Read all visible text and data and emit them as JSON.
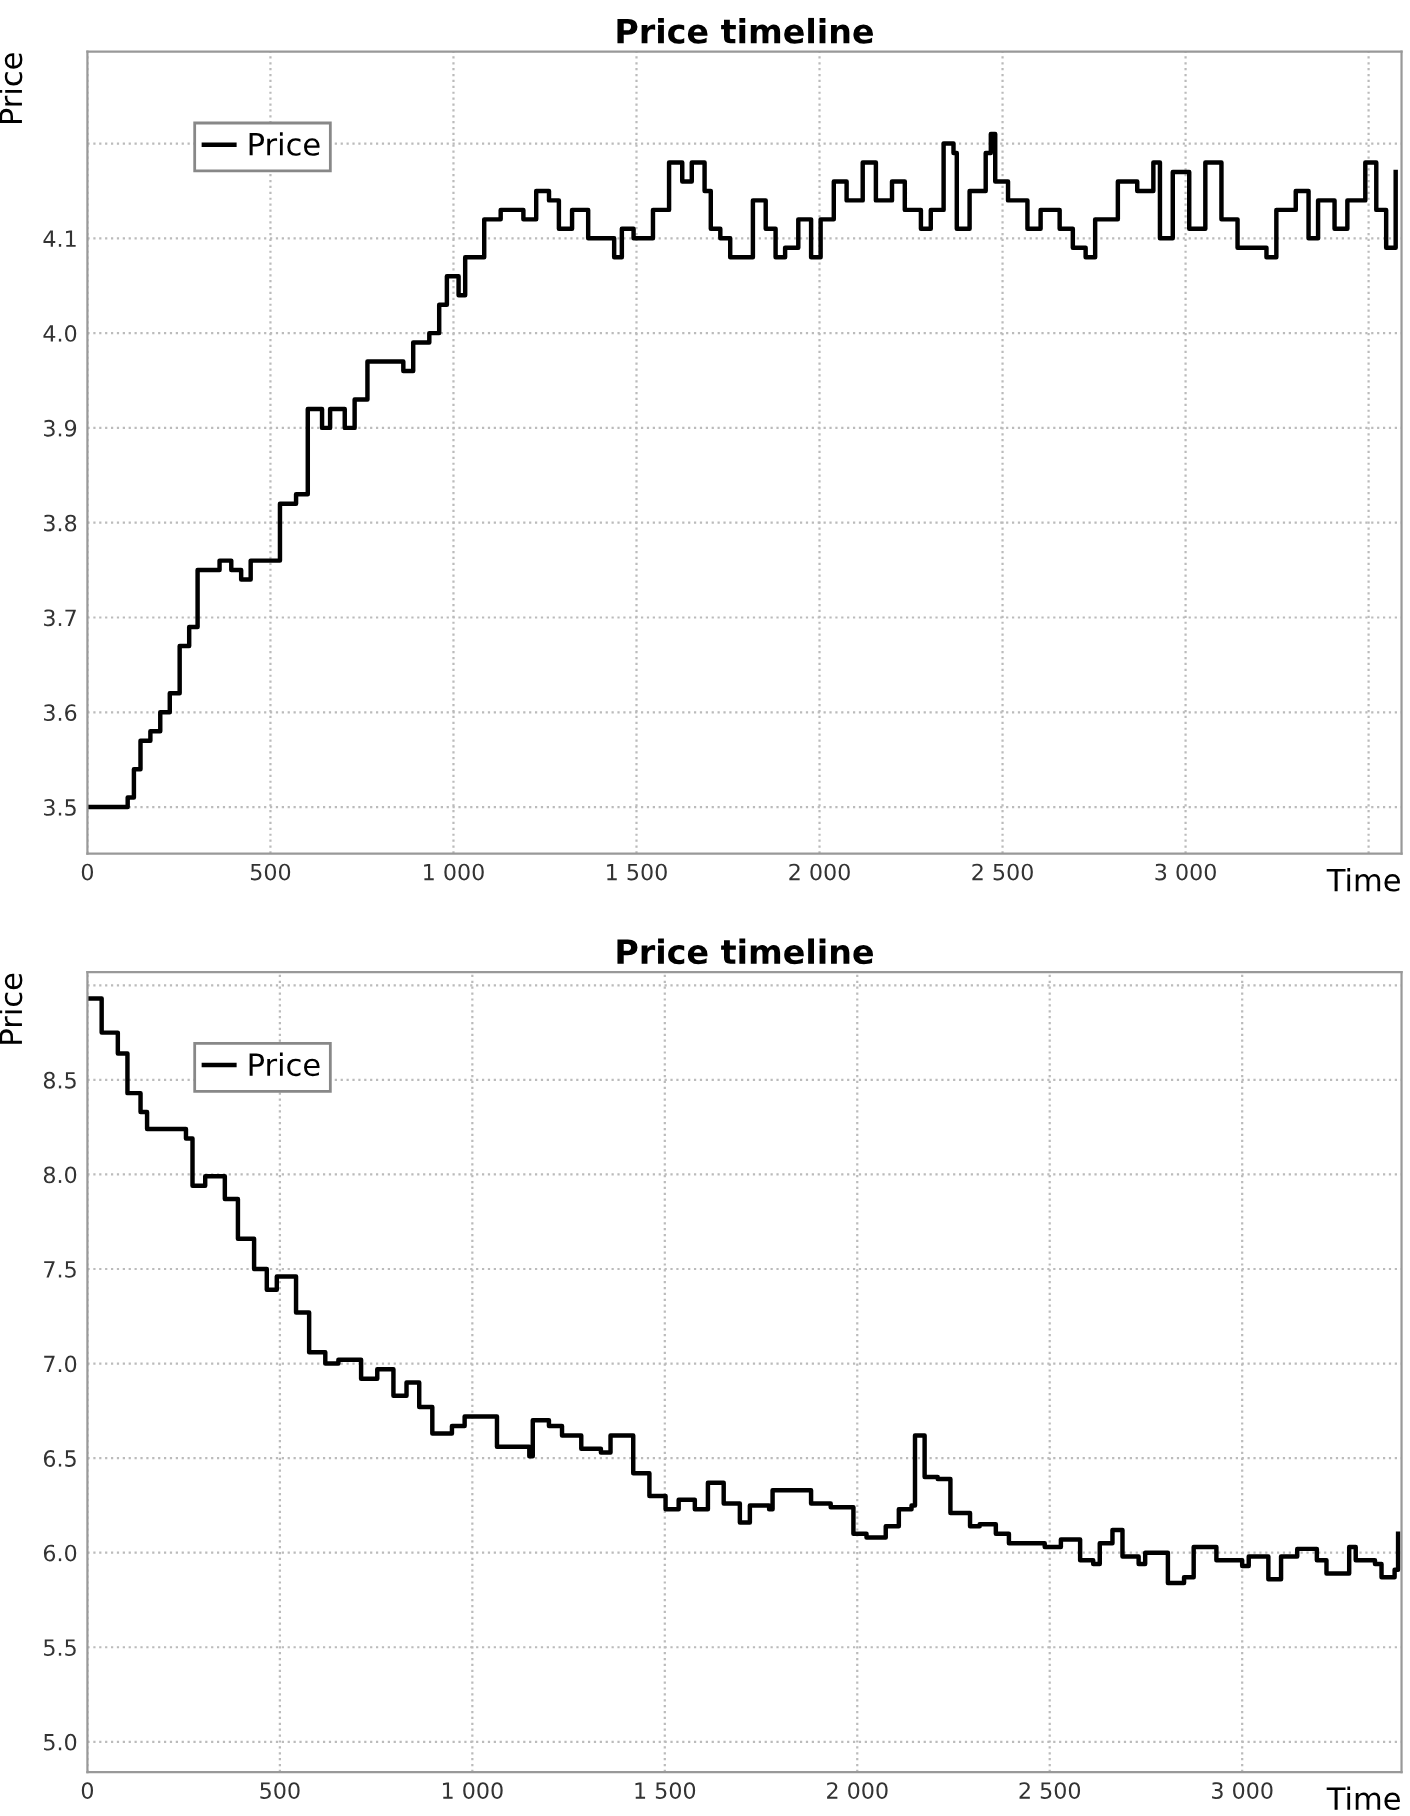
{
  "chart_data": [
    {
      "type": "step",
      "title": "Price timeline",
      "xlabel": "Time",
      "ylabel": "Price",
      "grid": true,
      "legend": "top left",
      "marker": "none",
      "line_style": "solid",
      "xlim": [
        0,
        3590
      ],
      "ylim": [
        3.451,
        4.297
      ],
      "xticks": [
        0,
        500,
        {
          "value": 1000,
          "label": "1 000"
        },
        {
          "value": 1500,
          "label": "1 500"
        },
        {
          "value": 2000,
          "label": "2 000"
        },
        {
          "value": 2500,
          "label": "2 500"
        },
        {
          "value": 3000,
          "label": "3 000"
        },
        {
          "value": 3500,
          "label": null
        }
      ],
      "yticks": [
        3.5,
        3.6,
        3.7,
        3.8,
        3.9,
        {
          "value": 4.0,
          "label": "4.0"
        },
        4.1,
        {
          "value": 4.2,
          "label": null
        }
      ],
      "series": [
        {
          "name": "Price",
          "color": "#000000",
          "x": [
            0,
            83,
            110,
            127,
            145,
            172,
            199,
            225,
            252,
            278,
            301,
            349,
            361,
            393,
            420,
            446,
            482,
            508,
            526,
            570,
            597,
            602,
            641,
            663,
            703,
            730,
            765,
            827,
            863,
            890,
            934,
            961,
            982,
            1014,
            1032,
            1084,
            1129,
            1191,
            1226,
            1261,
            1288,
            1324,
            1368,
            1439,
            1460,
            1492,
            1545,
            1589,
            1625,
            1651,
            1686,
            1703,
            1729,
            1756,
            1783,
            1818,
            1853,
            1880,
            1906,
            1942,
            1977,
            2003,
            2039,
            2074,
            2118,
            2154,
            2198,
            2233,
            2277,
            2304,
            2339,
            2366,
            2375,
            2410,
            2454,
            2468,
            2480,
            2515,
            2568,
            2604,
            2656,
            2692,
            2727,
            2753,
            2815,
            2868,
            2912,
            2930,
            2965,
            3010,
            3054,
            3080,
            3098,
            3142,
            3186,
            3221,
            3248,
            3301,
            3336,
            3362,
            3407,
            3442,
            3491,
            3521,
            3548,
            3574
          ],
          "values": [
            3.5,
            3.5,
            3.51,
            3.54,
            3.57,
            3.58,
            3.6,
            3.62,
            3.67,
            3.69,
            3.75,
            3.75,
            3.76,
            3.75,
            3.74,
            3.76,
            3.76,
            3.76,
            3.82,
            3.83,
            3.83,
            3.92,
            3.9,
            3.92,
            3.9,
            3.93,
            3.97,
            3.97,
            3.96,
            3.99,
            4.0,
            4.03,
            4.06,
            4.04,
            4.08,
            4.12,
            4.13,
            4.12,
            4.15,
            4.14,
            4.11,
            4.13,
            4.1,
            4.08,
            4.11,
            4.1,
            4.13,
            4.18,
            4.16,
            4.18,
            4.15,
            4.11,
            4.1,
            4.08,
            4.08,
            4.14,
            4.11,
            4.08,
            4.09,
            4.12,
            4.08,
            4.12,
            4.16,
            4.14,
            4.18,
            4.14,
            4.16,
            4.13,
            4.11,
            4.13,
            4.2,
            4.19,
            4.11,
            4.15,
            4.19,
            4.21,
            4.16,
            4.14,
            4.11,
            4.13,
            4.11,
            4.09,
            4.08,
            4.12,
            4.16,
            4.15,
            4.18,
            4.1,
            4.17,
            4.11,
            4.18,
            4.18,
            4.12,
            4.09,
            4.09,
            4.08,
            4.13,
            4.15,
            4.1,
            4.14,
            4.11,
            4.14,
            4.18,
            4.13,
            4.09,
            4.17
          ]
        }
      ]
    },
    {
      "type": "step",
      "title": "Price timeline",
      "xlabel": "Time",
      "ylabel": "Price",
      "grid": true,
      "legend": "top left",
      "marker": "none",
      "line_style": "solid",
      "xlim": [
        0,
        3414
      ],
      "ylim": [
        4.84,
        9.07
      ],
      "xticks": [
        0,
        500,
        {
          "value": 1000,
          "label": "1 000"
        },
        {
          "value": 1500,
          "label": "1 500"
        },
        {
          "value": 2000,
          "label": "2 000"
        },
        {
          "value": 2500,
          "label": "2 500"
        },
        {
          "value": 3000,
          "label": "3 000"
        }
      ],
      "yticks": [
        {
          "value": 5.0,
          "label": "5.0"
        },
        5.5,
        {
          "value": 6.0,
          "label": "6.0"
        },
        6.5,
        {
          "value": 7.0,
          "label": "7.0"
        },
        7.5,
        {
          "value": 8.0,
          "label": "8.0"
        },
        8.5,
        {
          "value": 9.0,
          "label": null
        }
      ],
      "series": [
        {
          "name": "Price",
          "color": "#000000",
          "x": [
            0,
            37,
            79,
            104,
            138,
            155,
            231,
            256,
            273,
            306,
            357,
            391,
            433,
            466,
            492,
            542,
            576,
            618,
            652,
            711,
            753,
            795,
            829,
            862,
            896,
            947,
            980,
            1022,
            1064,
            1148,
            1157,
            1199,
            1233,
            1283,
            1334,
            1359,
            1418,
            1460,
            1502,
            1536,
            1578,
            1612,
            1653,
            1695,
            1721,
            1771,
            1780,
            1838,
            1880,
            1931,
            1990,
            2024,
            2074,
            2108,
            2141,
            2150,
            2175,
            2209,
            2242,
            2293,
            2318,
            2360,
            2394,
            2445,
            2487,
            2529,
            2579,
            2613,
            2630,
            2663,
            2689,
            2731,
            2748,
            2807,
            2849,
            2874,
            2933,
            3000,
            3017,
            3068,
            3101,
            3143,
            3194,
            3219,
            3278,
            3295,
            3345,
            3362,
            3396,
            3405
          ],
          "values": [
            8.93,
            8.75,
            8.64,
            8.43,
            8.33,
            8.24,
            8.24,
            8.19,
            7.94,
            7.99,
            7.87,
            7.66,
            7.5,
            7.39,
            7.46,
            7.27,
            7.06,
            7.0,
            7.02,
            6.92,
            6.97,
            6.83,
            6.9,
            6.77,
            6.63,
            6.67,
            6.72,
            6.72,
            6.56,
            6.51,
            6.7,
            6.67,
            6.62,
            6.55,
            6.53,
            6.62,
            6.42,
            6.3,
            6.23,
            6.28,
            6.23,
            6.37,
            6.26,
            6.16,
            6.25,
            6.23,
            6.33,
            6.33,
            6.26,
            6.24,
            6.1,
            6.08,
            6.14,
            6.23,
            6.25,
            6.62,
            6.4,
            6.39,
            6.21,
            6.14,
            6.15,
            6.1,
            6.05,
            6.05,
            6.03,
            6.07,
            5.96,
            5.94,
            6.05,
            6.12,
            5.98,
            5.94,
            6.0,
            5.84,
            5.87,
            6.03,
            5.96,
            5.93,
            5.98,
            5.86,
            5.98,
            6.02,
            5.96,
            5.89,
            6.03,
            5.96,
            5.94,
            5.87,
            5.91,
            6.1
          ]
        }
      ]
    }
  ]
}
